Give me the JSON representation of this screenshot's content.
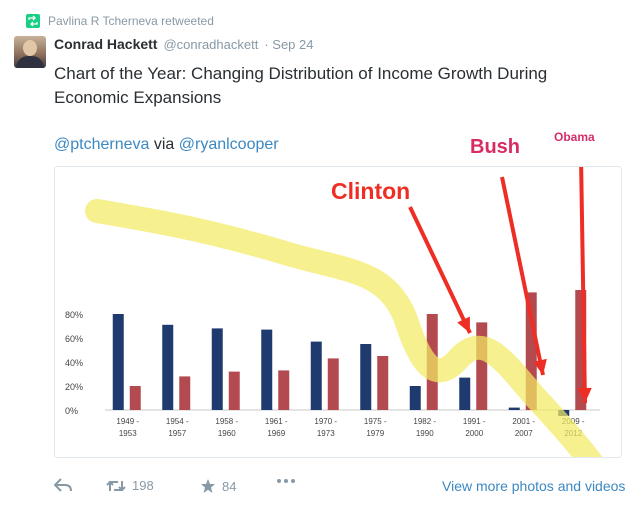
{
  "retweet": {
    "text": "Pavlina R Tcherneva retweeted",
    "icon": "retweet-icon"
  },
  "tweet": {
    "name": "Conrad Hackett",
    "handle": "@conradhackett",
    "date": "· Sep 24",
    "text": "Chart of the Year: Changing Distribution of Income Growth During Economic Expansions",
    "mention1": "@ptcherneva",
    "via": " via ",
    "mention2": "@ryanlcooper"
  },
  "actions": {
    "reply_icon": "reply-icon",
    "retweet_icon": "retweet-icon",
    "retweet_count": "198",
    "favorite_icon": "star-icon",
    "favorite_count": "84",
    "more_icon": "more-icon",
    "view_more": "View more photos and videos"
  },
  "annotations": {
    "clinton": "Clinton",
    "bush": "Bush",
    "obama": "Obama"
  },
  "colors": {
    "bottom90": "#1f3a6e",
    "top10": "#b24a4f",
    "highlight": "#f2ea63",
    "arrow": "#ee2e24",
    "obama_label": "#d62d6b",
    "bush_label": "#d92d62",
    "link": "#3b88c3"
  },
  "chart_data": {
    "type": "bar",
    "categories": [
      "1949 - 1953",
      "1954 - 1957",
      "1958 - 1960",
      "1961 - 1969",
      "1970 - 1973",
      "1975 - 1979",
      "1982 - 1990",
      "1991 - 2000",
      "2001 - 2007",
      "2009 - 2012"
    ],
    "series": [
      {
        "values": [
          80,
          71,
          68,
          67,
          57,
          55,
          20,
          27,
          2,
          -5
        ]
      },
      {
        "values": [
          20,
          28,
          32,
          33,
          43,
          45,
          80,
          73,
          98,
          100
        ]
      }
    ],
    "yticks": [
      "0%",
      "20%",
      "40%",
      "60%",
      "80%"
    ],
    "ylim": [
      -8,
      100
    ],
    "grid": false
  }
}
